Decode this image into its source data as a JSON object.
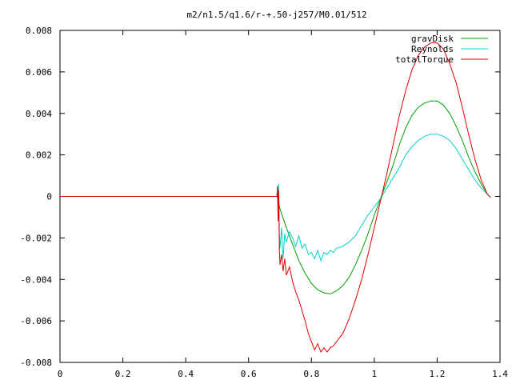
{
  "chart_data": {
    "type": "line",
    "title": "m2/n1.5/q1.6/r-+.50-j257/M0.01/512",
    "xlabel": "",
    "ylabel": "",
    "xlim": [
      0,
      1.4
    ],
    "ylim": [
      -0.008,
      0.008
    ],
    "grid": false,
    "legend_position": "top-right",
    "x_ticks": [
      0,
      0.2,
      0.4,
      0.6,
      0.8,
      1,
      1.2,
      1.4
    ],
    "x_tick_labels": [
      "0",
      "0.2",
      "0.4",
      "0.6",
      "0.8",
      "1",
      "1.2",
      "1.4"
    ],
    "y_ticks": [
      -0.008,
      -0.006,
      -0.004,
      -0.002,
      0,
      0.002,
      0.004,
      0.006,
      0.008
    ],
    "y_tick_labels": [
      "-0.008",
      "-0.006",
      "-0.004",
      "-0.002",
      "0",
      "0.002",
      "0.004",
      "0.006",
      "0.008"
    ],
    "series": [
      {
        "name": "gravDisk",
        "color": "#00a000",
        "points": [
          [
            0,
            0
          ],
          [
            0.69,
            0
          ],
          [
            0.695,
            -0.0002
          ],
          [
            0.7,
            -0.0006
          ],
          [
            0.72,
            -0.0015
          ],
          [
            0.74,
            -0.0023
          ],
          [
            0.76,
            -0.0031
          ],
          [
            0.78,
            -0.0037
          ],
          [
            0.8,
            -0.0042
          ],
          [
            0.82,
            -0.0045
          ],
          [
            0.84,
            -0.00465
          ],
          [
            0.86,
            -0.0047
          ],
          [
            0.88,
            -0.00455
          ],
          [
            0.9,
            -0.0043
          ],
          [
            0.92,
            -0.0039
          ],
          [
            0.94,
            -0.0033
          ],
          [
            0.96,
            -0.0026
          ],
          [
            0.98,
            -0.0018
          ],
          [
            1.0,
            -0.0009
          ],
          [
            1.02,
            -0.0001
          ],
          [
            1.04,
            0.0007
          ],
          [
            1.06,
            0.0015
          ],
          [
            1.08,
            0.0025
          ],
          [
            1.1,
            0.0033
          ],
          [
            1.12,
            0.0039
          ],
          [
            1.14,
            0.0043
          ],
          [
            1.16,
            0.0045
          ],
          [
            1.18,
            0.0046
          ],
          [
            1.2,
            0.0046
          ],
          [
            1.22,
            0.0044
          ],
          [
            1.24,
            0.004
          ],
          [
            1.26,
            0.0034
          ],
          [
            1.28,
            0.0027
          ],
          [
            1.3,
            0.0019
          ],
          [
            1.32,
            0.0012
          ],
          [
            1.34,
            0.0006
          ],
          [
            1.36,
            0.0001
          ],
          [
            1.37,
            -5e-05
          ]
        ]
      },
      {
        "name": "Reynolds",
        "color": "#00d0d0",
        "points": [
          [
            0,
            0
          ],
          [
            0.69,
            0
          ],
          [
            0.692,
            0.0005
          ],
          [
            0.694,
            -0.001
          ],
          [
            0.696,
            0.0006
          ],
          [
            0.698,
            -0.0018
          ],
          [
            0.7,
            -0.0025
          ],
          [
            0.705,
            -0.0015
          ],
          [
            0.71,
            -0.003
          ],
          [
            0.715,
            -0.0018
          ],
          [
            0.72,
            -0.0022
          ],
          [
            0.73,
            -0.0017
          ],
          [
            0.74,
            -0.002
          ],
          [
            0.75,
            -0.0024
          ],
          [
            0.76,
            -0.0019
          ],
          [
            0.77,
            -0.0025
          ],
          [
            0.78,
            -0.0023
          ],
          [
            0.79,
            -0.0028
          ],
          [
            0.8,
            -0.0027
          ],
          [
            0.81,
            -0.003
          ],
          [
            0.82,
            -0.0026
          ],
          [
            0.83,
            -0.0031
          ],
          [
            0.84,
            -0.0027
          ],
          [
            0.85,
            -0.0028
          ],
          [
            0.86,
            -0.0026
          ],
          [
            0.87,
            -0.0027
          ],
          [
            0.88,
            -0.0025
          ],
          [
            0.9,
            -0.0024
          ],
          [
            0.92,
            -0.0022
          ],
          [
            0.94,
            -0.0019
          ],
          [
            0.96,
            -0.0014
          ],
          [
            0.98,
            -0.0009
          ],
          [
            1.0,
            -0.0005
          ],
          [
            1.02,
            -0.0001
          ],
          [
            1.04,
            0.0004
          ],
          [
            1.06,
            0.0009
          ],
          [
            1.08,
            0.0014
          ],
          [
            1.1,
            0.002
          ],
          [
            1.12,
            0.0024
          ],
          [
            1.14,
            0.0027
          ],
          [
            1.16,
            0.0029
          ],
          [
            1.18,
            0.003
          ],
          [
            1.2,
            0.003
          ],
          [
            1.22,
            0.0029
          ],
          [
            1.24,
            0.0027
          ],
          [
            1.26,
            0.0023
          ],
          [
            1.28,
            0.0018
          ],
          [
            1.3,
            0.0013
          ],
          [
            1.32,
            0.0008
          ],
          [
            1.34,
            0.0004
          ],
          [
            1.36,
            0.0001
          ],
          [
            1.37,
            -5e-05
          ]
        ]
      },
      {
        "name": "totalTorque",
        "color": "#e00000",
        "points": [
          [
            0,
            0
          ],
          [
            0.69,
            0
          ],
          [
            0.692,
            0.0005
          ],
          [
            0.694,
            -0.0012
          ],
          [
            0.696,
            0.0003
          ],
          [
            0.698,
            -0.0026
          ],
          [
            0.7,
            -0.0033
          ],
          [
            0.705,
            -0.0028
          ],
          [
            0.71,
            -0.0036
          ],
          [
            0.715,
            -0.003
          ],
          [
            0.72,
            -0.0038
          ],
          [
            0.73,
            -0.0034
          ],
          [
            0.74,
            -0.0041
          ],
          [
            0.75,
            -0.0046
          ],
          [
            0.76,
            -0.005
          ],
          [
            0.77,
            -0.0055
          ],
          [
            0.78,
            -0.006
          ],
          [
            0.79,
            -0.0066
          ],
          [
            0.8,
            -0.007
          ],
          [
            0.81,
            -0.0074
          ],
          [
            0.82,
            -0.0071
          ],
          [
            0.83,
            -0.0075
          ],
          [
            0.84,
            -0.0073
          ],
          [
            0.85,
            -0.0075
          ],
          [
            0.86,
            -0.0073
          ],
          [
            0.87,
            -0.0072
          ],
          [
            0.88,
            -0.007
          ],
          [
            0.9,
            -0.0066
          ],
          [
            0.92,
            -0.0059
          ],
          [
            0.94,
            -0.005
          ],
          [
            0.96,
            -0.004
          ],
          [
            0.98,
            -0.0028
          ],
          [
            1.0,
            -0.0015
          ],
          [
            1.02,
            -0.0002
          ],
          [
            1.04,
            0.0011
          ],
          [
            1.06,
            0.0025
          ],
          [
            1.08,
            0.0039
          ],
          [
            1.1,
            0.0051
          ],
          [
            1.12,
            0.0061
          ],
          [
            1.14,
            0.0068
          ],
          [
            1.16,
            0.0072
          ],
          [
            1.18,
            0.0074
          ],
          [
            1.2,
            0.0074
          ],
          [
            1.22,
            0.0071
          ],
          [
            1.24,
            0.0064
          ],
          [
            1.26,
            0.0055
          ],
          [
            1.28,
            0.0043
          ],
          [
            1.3,
            0.003
          ],
          [
            1.32,
            0.0018
          ],
          [
            1.34,
            0.0008
          ],
          [
            1.36,
            0.0001
          ],
          [
            1.37,
            -5e-05
          ]
        ]
      }
    ]
  }
}
